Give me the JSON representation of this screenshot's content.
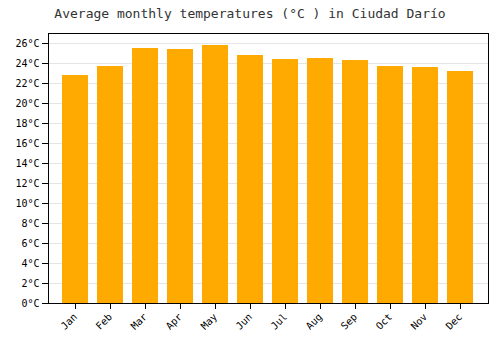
{
  "chart_data": {
    "type": "bar",
    "title": "Average monthly temperatures (°C ) in Ciudad Darío",
    "categories": [
      "Jan",
      "Feb",
      "Mar",
      "Apr",
      "May",
      "Jun",
      "Jul",
      "Aug",
      "Sep",
      "Oct",
      "Nov",
      "Dec"
    ],
    "values": [
      22.8,
      23.7,
      25.5,
      25.4,
      25.8,
      24.8,
      24.4,
      24.5,
      24.3,
      23.7,
      23.6,
      23.2
    ],
    "color": "#FFAA00",
    "ylim": [
      0,
      27
    ],
    "yticks": [
      {
        "value": 0,
        "label": "0°C"
      },
      {
        "value": 2,
        "label": "2°C"
      },
      {
        "value": 4,
        "label": "4°C"
      },
      {
        "value": 6,
        "label": "6°C"
      },
      {
        "value": 8,
        "label": "8°C"
      },
      {
        "value": 10,
        "label": "10°C"
      },
      {
        "value": 12,
        "label": "12°C"
      },
      {
        "value": 14,
        "label": "14°C"
      },
      {
        "value": 16,
        "label": "16°C"
      },
      {
        "value": 18,
        "label": "18°C"
      },
      {
        "value": 20,
        "label": "20°C"
      },
      {
        "value": 22,
        "label": "22°C"
      },
      {
        "value": 24,
        "label": "24°C"
      },
      {
        "value": 26,
        "label": "26°C"
      }
    ],
    "grid": true
  }
}
